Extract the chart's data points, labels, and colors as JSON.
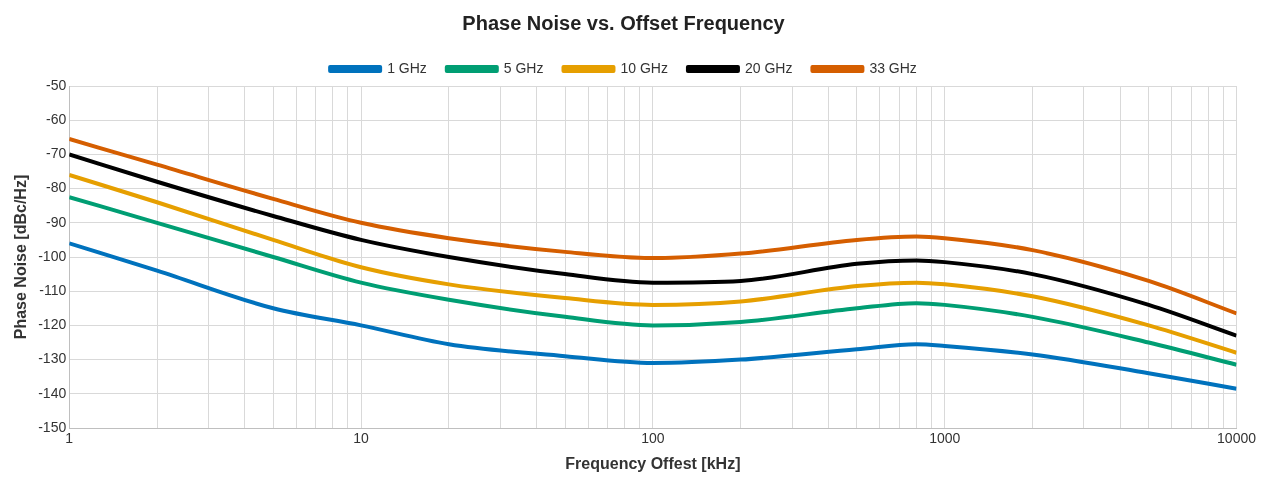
{
  "chart_data": {
    "type": "line",
    "title": "Phase Noise vs. Offset Frequency",
    "xlabel": "Frequency Offest [kHz]",
    "ylabel": "Phase Noise [dBc/Hz]",
    "log": "x",
    "grid": true,
    "legend": "top",
    "marker": "none",
    "line_style": "solid",
    "x": [
      1,
      2,
      5,
      10,
      20,
      50,
      100,
      200,
      500,
      800,
      1000,
      2000,
      5000,
      10000
    ],
    "xlim": [
      1,
      10000
    ],
    "xticks": [
      1,
      {
        "value": 2,
        "label": null
      },
      {
        "value": 3,
        "label": null
      },
      {
        "value": 4,
        "label": null
      },
      {
        "value": 5,
        "label": null
      },
      {
        "value": 6,
        "label": null
      },
      {
        "value": 7,
        "label": null
      },
      {
        "value": 8,
        "label": null
      },
      {
        "value": 9,
        "label": null
      },
      10,
      {
        "value": 20,
        "label": null
      },
      {
        "value": 30,
        "label": null
      },
      {
        "value": 40,
        "label": null
      },
      {
        "value": 50,
        "label": null
      },
      {
        "value": 60,
        "label": null
      },
      {
        "value": 70,
        "label": null
      },
      {
        "value": 80,
        "label": null
      },
      {
        "value": 90,
        "label": null
      },
      100,
      {
        "value": 200,
        "label": null
      },
      {
        "value": 300,
        "label": null
      },
      {
        "value": 400,
        "label": null
      },
      {
        "value": 500,
        "label": null
      },
      {
        "value": 600,
        "label": null
      },
      {
        "value": 700,
        "label": null
      },
      {
        "value": 800,
        "label": null
      },
      {
        "value": 900,
        "label": null
      },
      1000,
      {
        "value": 2000,
        "label": null
      },
      {
        "value": 3000,
        "label": null
      },
      {
        "value": 4000,
        "label": null
      },
      {
        "value": 5000,
        "label": null
      },
      {
        "value": 6000,
        "label": null
      },
      {
        "value": 7000,
        "label": null
      },
      {
        "value": 8000,
        "label": null
      },
      {
        "value": 9000,
        "label": null
      },
      10000
    ],
    "ylim": [
      -150,
      -50
    ],
    "yticks": [
      -150,
      -140,
      -130,
      -120,
      -110,
      -100,
      -90,
      -80,
      -70,
      -60,
      -50
    ],
    "series": [
      {
        "name": "1 GHz",
        "color": "#0072bd",
        "values": [
          -96,
          -104,
          -115,
          -120,
          -125.5,
          -129,
          -131,
          -130,
          -127,
          -125.5,
          -126,
          -128.5,
          -134,
          -138.5
        ]
      },
      {
        "name": "5 GHz",
        "color": "#009e73",
        "values": [
          -82.5,
          -90,
          -100,
          -107.5,
          -112.5,
          -117.5,
          -120,
          -119,
          -115,
          -113.5,
          -114,
          -117.5,
          -125,
          -131.5
        ]
      },
      {
        "name": "10 GHz",
        "color": "#e69f00",
        "values": [
          -76,
          -84,
          -95,
          -103,
          -108,
          -112,
          -114,
          -113,
          -108.5,
          -107.5,
          -108,
          -111.5,
          -120,
          -128
        ]
      },
      {
        "name": "20 GHz",
        "color": "#000000",
        "values": [
          -70,
          -78,
          -88,
          -95,
          -100,
          -105,
          -107.5,
          -107,
          -102,
          -101,
          -101.5,
          -105,
          -114,
          -123
        ]
      },
      {
        "name": "33 GHz",
        "color": "#d55e00",
        "values": [
          -65.5,
          -73,
          -83,
          -90,
          -94.5,
          -98.5,
          -100.3,
          -99,
          -95,
          -94,
          -94.5,
          -98,
          -107,
          -116.5
        ]
      }
    ]
  }
}
